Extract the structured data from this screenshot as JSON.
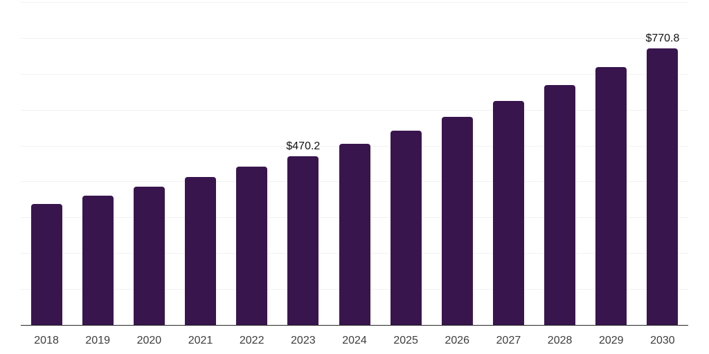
{
  "chart_data": {
    "type": "bar",
    "title": "",
    "xlabel": "",
    "ylabel": "",
    "categories": [
      "2018",
      "2019",
      "2020",
      "2021",
      "2022",
      "2023",
      "2024",
      "2025",
      "2026",
      "2027",
      "2028",
      "2029",
      "2030"
    ],
    "values": [
      337,
      360,
      385,
      412,
      441,
      470.2,
      504,
      541,
      581,
      624,
      669,
      718,
      770.8
    ],
    "data_labels": [
      {
        "category": "2023",
        "text": "$470.2"
      },
      {
        "category": "2030",
        "text": "$770.8"
      }
    ],
    "ylim": [
      0,
      900
    ],
    "grid_interval": 100,
    "grid": "horizontal",
    "legend": "none",
    "y_axis_labels_visible": false,
    "colors": {
      "bar": "#39154E",
      "axis_line": "#262626",
      "gridline": "#f1f1f1",
      "tick_label": "#3d3d3d",
      "data_label": "#111111",
      "background": "#ffffff"
    }
  }
}
